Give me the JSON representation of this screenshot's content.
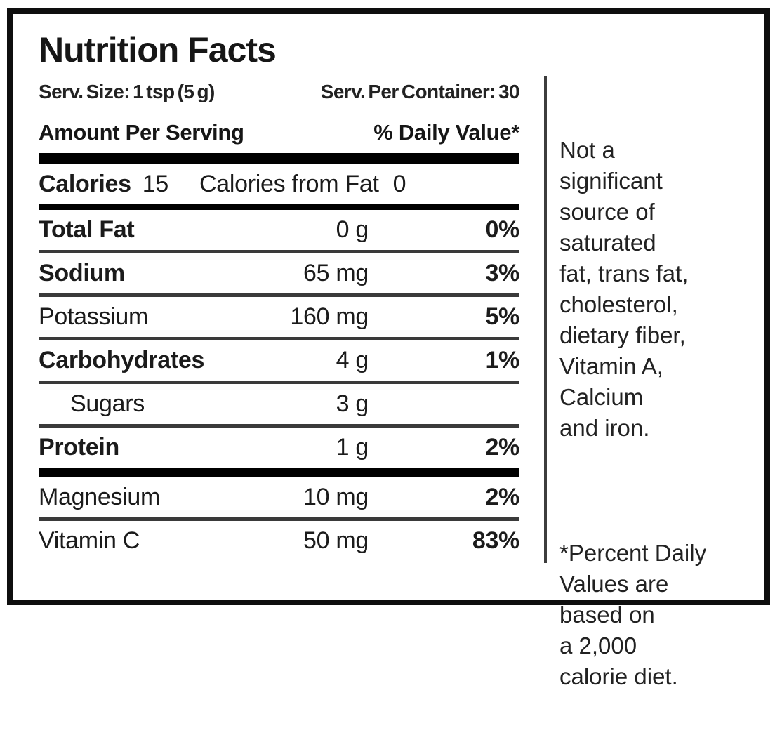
{
  "label": {
    "title": "Nutrition Facts",
    "serving": {
      "size": "Serv. Size: 1 tsp (5 g)",
      "per_container": "Serv. Per Container: 30"
    },
    "columns": {
      "amount_header": "Amount Per Serving",
      "daily_value_header": "% Daily Value*"
    },
    "calories": {
      "label": "Calories",
      "value": "15",
      "from_fat_label": "Calories from Fat",
      "from_fat_value": "0"
    },
    "rows": [
      {
        "label": "Total Fat",
        "amount": "0 g",
        "dv": "0%"
      },
      {
        "label": "Sodium",
        "amount": "65 mg",
        "dv": "3%"
      },
      {
        "label": "Potassium",
        "amount": "160 mg",
        "dv": "5%"
      },
      {
        "label": "Carbohydrates",
        "amount": "4 g",
        "dv": "1%"
      },
      {
        "label": "Sugars",
        "amount": "3 g",
        "dv": ""
      },
      {
        "label": "Protein",
        "amount": "1 g",
        "dv": "2%"
      },
      {
        "label": "Magnesium",
        "amount": "10 mg",
        "dv": "2%"
      },
      {
        "label": "Vitamin C",
        "amount": "50 mg",
        "dv": "83%"
      }
    ],
    "notes": {
      "not_significant": "Not a\nsignificant\nsource of\nsaturated\nfat, trans fat,\ncholesterol,\ndietary fiber,\nVitamin A,\nCalcium\nand iron.",
      "percent_daily": "*Percent Daily\nValues are\nbased on\na 2,000\ncalorie diet."
    },
    "colors": {
      "text": "#1b1b1b",
      "bars": "#000000",
      "separators": "#3a3a3a",
      "background": "#ffffff"
    }
  }
}
